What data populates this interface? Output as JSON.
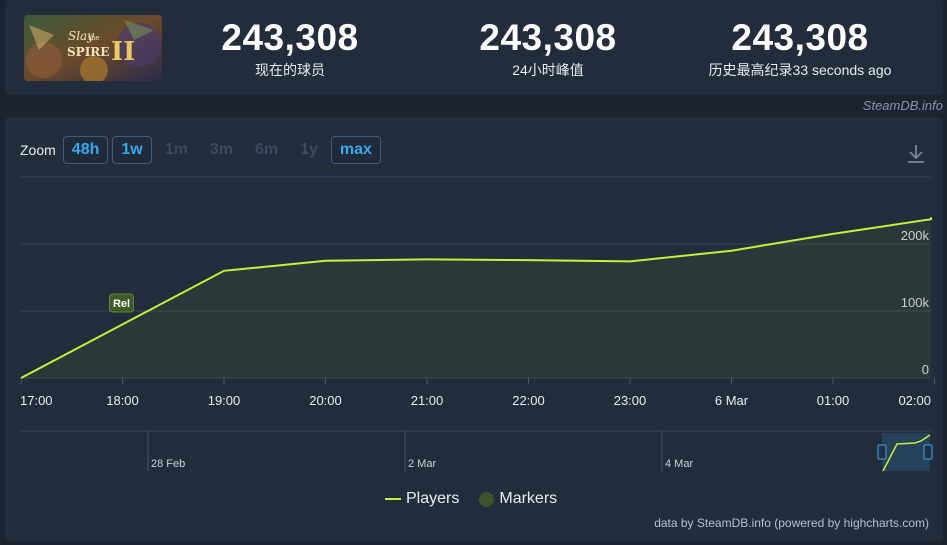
{
  "header": {
    "game_image_alt": "Slay the Spire II",
    "stats": [
      {
        "value": "243,308",
        "label": "现在的球员"
      },
      {
        "value": "243,308",
        "label": "24小时峰值"
      },
      {
        "value": "243,308",
        "label": "历史最高纪录33 seconds ago"
      }
    ],
    "credit": "SteamDB.info"
  },
  "zoom": {
    "label": "Zoom",
    "options": [
      {
        "label": "48h",
        "active": true
      },
      {
        "label": "1w",
        "active": true
      },
      {
        "label": "1m",
        "active": false
      },
      {
        "label": "3m",
        "active": false
      },
      {
        "label": "6m",
        "active": false
      },
      {
        "label": "1y",
        "active": false
      },
      {
        "label": "max",
        "active": true
      }
    ]
  },
  "chart_data": {
    "type": "line",
    "x_ticks": [
      "17:00",
      "18:00",
      "19:00",
      "20:00",
      "21:00",
      "22:00",
      "23:00",
      "6 Mar",
      "01:00",
      "02:00"
    ],
    "y_ticks": [
      "0",
      "100k",
      "200k"
    ],
    "ylim": [
      0,
      300000
    ],
    "series": [
      {
        "name": "Players",
        "color": "#c4f23a",
        "x_hours": [
          0,
          2,
          3,
          4,
          5,
          6,
          7,
          8,
          9,
          10.15
        ],
        "values": [
          0,
          160000,
          175000,
          177000,
          176000,
          174000,
          190000,
          215000,
          237000,
          240000
        ]
      }
    ],
    "markers": [
      {
        "label": "Rel",
        "x_hour": 1.0
      }
    ],
    "navigator_ticks": [
      "28 Feb",
      "2 Mar",
      "4 Mar"
    ],
    "legend": [
      "Players",
      "Markers"
    ]
  },
  "footer": {
    "credit": "data by SteamDB.info (powered by highcharts.com)"
  }
}
